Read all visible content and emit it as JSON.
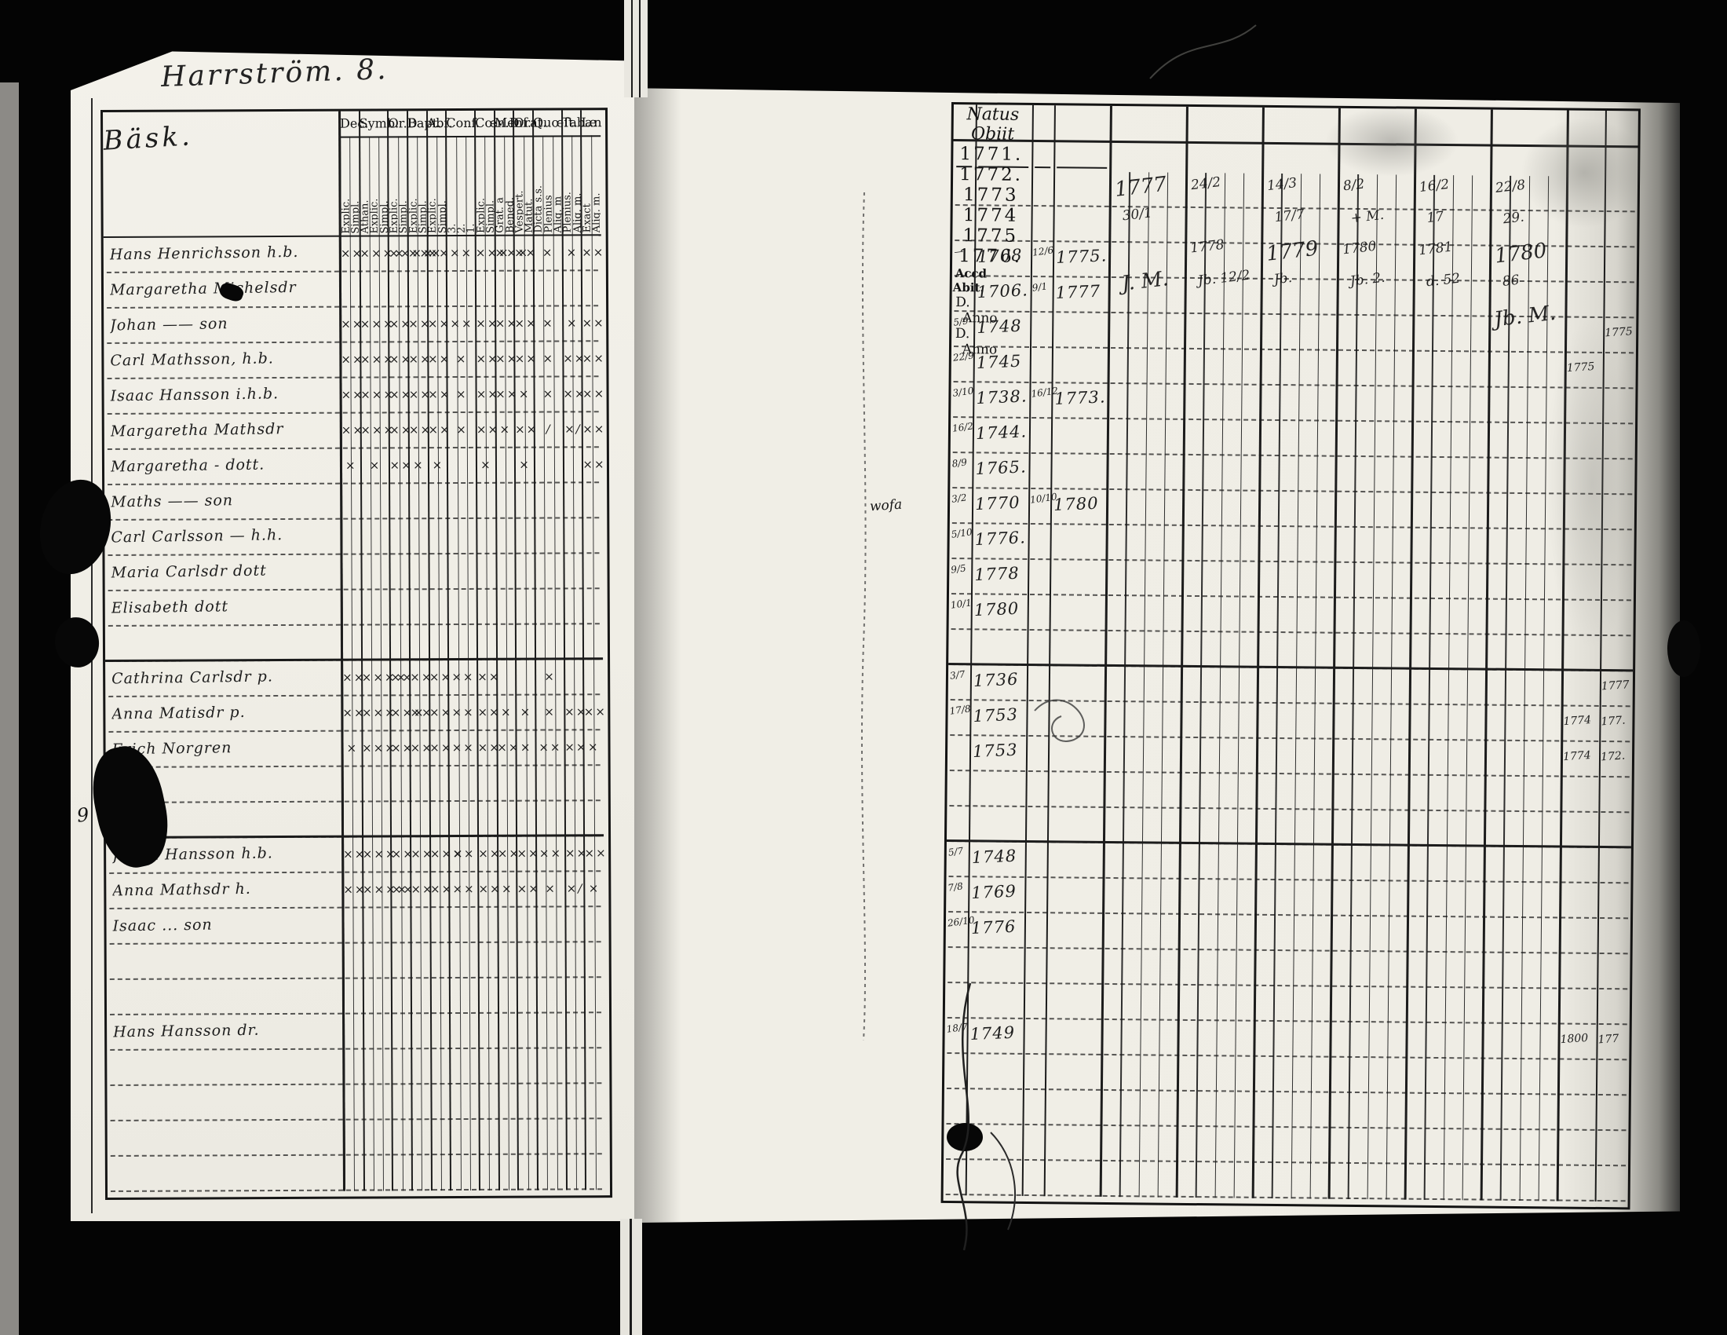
{
  "title": "Harrström. 8.",
  "colors": {
    "paper": "#f0eee6",
    "ink": "#1d1d1d",
    "background": "#040404"
  },
  "left_table": {
    "name_header": "Bäsk.",
    "columns": [
      {
        "label": "Dec.",
        "subs": [
          "Explic.",
          "Simpl."
        ]
      },
      {
        "label": "Symb.",
        "subs": [
          "Athan.",
          "Explic.",
          "Simpl."
        ]
      },
      {
        "label": "Or.D",
        "subs": [
          "Explic.",
          "Simpl."
        ]
      },
      {
        "label": "Bapt.",
        "subs": [
          "Explic.",
          "Simpl."
        ]
      },
      {
        "label": "Abſ.",
        "subs": [
          "Explic.",
          "Simpl."
        ]
      },
      {
        "label": "Conf.",
        "subs": [
          "3.",
          "2.",
          "1."
        ]
      },
      {
        "label": "Cœn.D",
        "subs": [
          "Explic.",
          "Simpl."
        ]
      },
      {
        "label": "Menſ.",
        "subs": [
          "Grat. a",
          "Bened."
        ]
      },
      {
        "label": "Orat.",
        "subs": [
          "Vespert.",
          "Matut."
        ]
      },
      {
        "label": "Quœſt.",
        "subs": [
          "Dicta s.s.",
          "Plenius",
          "Aliq. m"
        ]
      },
      {
        "label": "Tabæ",
        "subs": [
          "Plenius.",
          "Aliq. m."
        ]
      },
      {
        "label": "L.n",
        "subs": [
          "Exact",
          "Aliq. m."
        ]
      }
    ],
    "rows": [
      {
        "name": "Hans Henrichsson h.b.",
        "marks": [
          "××",
          "××××",
          "××××",
          "×××",
          "××",
          "××",
          "×××",
          "×××",
          "××",
          "×",
          "×",
          "××"
        ]
      },
      {
        "name": "Margaretha Michelsdr",
        "marks": [
          "",
          "",
          "",
          "",
          "",
          "",
          "",
          "",
          "",
          "",
          "",
          ""
        ]
      },
      {
        "name": "Johan  ——  son",
        "marks": [
          "××",
          "×××",
          "××",
          "××",
          "××",
          "××",
          "××",
          "××",
          "××",
          "×",
          "×",
          "××"
        ]
      },
      {
        "name": "Carl Mathsson, h.b.",
        "marks": [
          "××",
          "×××",
          "××",
          "××",
          "××",
          "×",
          "××",
          "××",
          "××",
          "×",
          "××",
          "××"
        ]
      },
      {
        "name": "Isaac Hansson i.h.b.",
        "marks": [
          "××",
          "×××",
          "××",
          "××",
          "××",
          "×",
          "××",
          "××",
          "×",
          "×",
          "××",
          "××"
        ]
      },
      {
        "name": "Margaretha Mathsdr",
        "marks": [
          "××",
          "×××",
          "××",
          "××",
          "××",
          "×",
          "××",
          "×",
          "××",
          "/",
          "×/",
          "××"
        ]
      },
      {
        "name": "Margaretha - dott.",
        "marks": [
          "×",
          "×",
          "××",
          "×",
          "×",
          "",
          "×",
          "",
          "×",
          "",
          "",
          "××"
        ]
      },
      {
        "name": "Maths  ——  son",
        "marks": [
          "",
          "",
          "",
          "",
          "",
          "",
          "",
          "",
          "",
          "",
          "",
          ""
        ]
      },
      {
        "name": "Carl Carlsson — h.h.",
        "marks": [
          "",
          "",
          "",
          "",
          "",
          "",
          "",
          "",
          "",
          "",
          "",
          ""
        ]
      },
      {
        "name": "Maria Carlsdr  dott",
        "marks": [
          "",
          "",
          "",
          "",
          "",
          "",
          "",
          "",
          "",
          "",
          "",
          ""
        ]
      },
      {
        "name": "Elisabeth  dott",
        "marks": [
          "",
          "",
          "",
          "",
          "",
          "",
          "",
          "",
          "",
          "",
          "",
          ""
        ]
      },
      {
        "name": "",
        "marks": [
          "",
          "",
          "",
          "",
          "",
          "",
          "",
          "",
          "",
          "",
          "",
          ""
        ]
      },
      {
        "name": "Cathrina Carlsdr p.",
        "marks": [
          "××",
          "××××",
          "××",
          "××",
          "××",
          "××",
          "××",
          "",
          "",
          "×",
          "",
          ""
        ]
      },
      {
        "name": "Anna Matisdr p.",
        "marks": [
          "××",
          "×××",
          "×××",
          "××",
          "××",
          "××",
          "××",
          "×",
          "×",
          "×",
          "××",
          "××"
        ]
      },
      {
        "name": "Erich Norgren",
        "marks": [
          "×",
          "×××",
          "××",
          "××",
          "××",
          "××",
          "××",
          "××",
          "×",
          "××",
          "××",
          "×"
        ]
      },
      {
        "name": "",
        "marks": [
          "",
          "",
          "",
          "",
          "",
          "",
          "",
          "",
          "",
          "",
          "",
          ""
        ]
      },
      {
        "name": "",
        "marks": [
          "",
          "",
          "",
          "",
          "",
          "",
          "",
          "",
          "",
          "",
          "",
          ""
        ]
      },
      {
        "name": "Johan Hansson h.b.",
        "marks": [
          "××",
          "×××",
          "××",
          "××",
          "×××",
          "××",
          "××",
          "××",
          "××",
          "××",
          "××",
          "××"
        ]
      },
      {
        "name": "Anna Mathsdr h.",
        "marks": [
          "××",
          "××××",
          "××",
          "××",
          "××",
          "××",
          "××",
          "×",
          "××",
          "×",
          "×/",
          "×"
        ]
      },
      {
        "name": "Isaac  ...  son",
        "marks": [
          "",
          "",
          "",
          "",
          "",
          "",
          "",
          "",
          "",
          "",
          "",
          ""
        ]
      },
      {
        "name": "",
        "marks": [
          "",
          "",
          "",
          "",
          "",
          "",
          "",
          "",
          "",
          "",
          "",
          ""
        ]
      },
      {
        "name": "",
        "marks": [
          "",
          "",
          "",
          "",
          "",
          "",
          "",
          "",
          "",
          "",
          "",
          ""
        ]
      },
      {
        "name": "Hans Hansson  dr.",
        "marks": [
          "",
          "",
          "",
          "",
          "",
          "",
          "",
          "",
          "",
          "",
          "",
          ""
        ]
      },
      {
        "name": "",
        "marks": [
          "",
          "",
          "",
          "",
          "",
          "",
          "",
          "",
          "",
          "",
          "",
          ""
        ]
      },
      {
        "name": "",
        "marks": [
          "",
          "",
          "",
          "",
          "",
          "",
          "",
          "",
          "",
          "",
          "",
          ""
        ]
      },
      {
        "name": "",
        "marks": [
          "",
          "",
          "",
          "",
          "",
          "",
          "",
          "",
          "",
          "",
          "",
          ""
        ]
      },
      {
        "name": "",
        "marks": [
          "",
          "",
          "",
          "",
          "",
          "",
          "",
          "",
          "",
          "",
          "",
          ""
        ]
      }
    ]
  },
  "right_table": {
    "natus_label": "Natus",
    "obiit_label": "Obiit",
    "sub": [
      "D.",
      "Anno",
      "D.",
      "Anno"
    ],
    "years": [
      "1771.",
      "1772.",
      "1773",
      "1774",
      "1775",
      "1776."
    ],
    "acc_label": "Accd",
    "abit_label": "Abit.",
    "rows": [
      {
        "natus_d": "—",
        "natus": "1708",
        "obiit_d": "12/6",
        "obiit": "1775.",
        "acc": "",
        "abit": ""
      },
      {
        "natus_d": "",
        "natus": "1706.",
        "obiit_d": "9/1",
        "obiit": "1777",
        "acc": "",
        "abit": ""
      },
      {
        "natus_d": "5/9",
        "natus": "1748",
        "obiit_d": "",
        "obiit": "",
        "acc": "",
        "abit": "1775"
      },
      {
        "natus_d": "22/9",
        "natus": "1745",
        "obiit_d": "",
        "obiit": "",
        "acc": "1775",
        "abit": ""
      },
      {
        "natus_d": "3/10",
        "natus": "1738.",
        "obiit_d": "16/12",
        "obiit": "1773.",
        "acc": "",
        "abit": ""
      },
      {
        "natus_d": "16/2",
        "natus": "1744.",
        "obiit_d": "",
        "obiit": "",
        "acc": "",
        "abit": ""
      },
      {
        "natus_d": "8/9",
        "natus": "1765.",
        "obiit_d": "",
        "obiit": "",
        "acc": "",
        "abit": ""
      },
      {
        "natus_d": "3/2",
        "natus": "1770",
        "obiit_d": "10/10",
        "obiit": "1780",
        "acc": "",
        "abit": ""
      },
      {
        "natus_d": "5/10",
        "natus": "1776.",
        "obiit_d": "",
        "obiit": "",
        "acc": "",
        "abit": ""
      },
      {
        "natus_d": "9/5",
        "natus": "1778",
        "obiit_d": "",
        "obiit": "",
        "acc": "",
        "abit": ""
      },
      {
        "natus_d": "10/1",
        "natus": "1780",
        "obiit_d": "",
        "obiit": "",
        "acc": "",
        "abit": ""
      },
      {
        "natus_d": "",
        "natus": "",
        "obiit_d": "",
        "obiit": "",
        "acc": "",
        "abit": ""
      },
      {
        "natus_d": "3/7",
        "natus": "1736",
        "obiit_d": "",
        "obiit": "",
        "acc": "",
        "abit": "1777"
      },
      {
        "natus_d": "17/8",
        "natus": "1753",
        "obiit_d": "",
        "obiit": "",
        "acc": "1774",
        "abit": "177."
      },
      {
        "natus_d": "",
        "natus": "1753",
        "obiit_d": "",
        "obiit": "",
        "acc": "1774",
        "abit": "172."
      },
      {
        "natus_d": "",
        "natus": "",
        "obiit_d": "",
        "obiit": "",
        "acc": "",
        "abit": ""
      },
      {
        "natus_d": "",
        "natus": "",
        "obiit_d": "",
        "obiit": "",
        "acc": "",
        "abit": ""
      },
      {
        "natus_d": "5/7",
        "natus": "1748",
        "obiit_d": "",
        "obiit": "",
        "acc": "",
        "abit": ""
      },
      {
        "natus_d": "7/8",
        "natus": "1769",
        "obiit_d": "",
        "obiit": "",
        "acc": "",
        "abit": ""
      },
      {
        "natus_d": "26/10",
        "natus": "1776",
        "obiit_d": "",
        "obiit": "",
        "acc": "",
        "abit": ""
      },
      {
        "natus_d": "",
        "natus": "",
        "obiit_d": "",
        "obiit": "",
        "acc": "",
        "abit": ""
      },
      {
        "natus_d": "",
        "natus": "",
        "obiit_d": "",
        "obiit": "",
        "acc": "",
        "abit": ""
      },
      {
        "natus_d": "18/7",
        "natus": "1749",
        "obiit_d": "",
        "obiit": "",
        "acc": "1800",
        "abit": "177"
      },
      {
        "natus_d": "",
        "natus": "",
        "obiit_d": "",
        "obiit": "",
        "acc": "",
        "abit": ""
      },
      {
        "natus_d": "",
        "natus": "",
        "obiit_d": "",
        "obiit": "",
        "acc": "",
        "abit": ""
      },
      {
        "natus_d": "",
        "natus": "",
        "obiit_d": "",
        "obiit": "",
        "acc": "",
        "abit": ""
      },
      {
        "natus_d": "",
        "natus": "",
        "obiit_d": "",
        "obiit": "",
        "acc": "",
        "abit": ""
      }
    ],
    "scrawls": [
      {
        "col": 0,
        "line": 0,
        "text": "1777",
        "big": true
      },
      {
        "col": 0,
        "line": 1,
        "text": "30/1"
      },
      {
        "col": 0,
        "line": 3,
        "text": "J. M.",
        "big": true
      },
      {
        "col": 1,
        "line": 0,
        "text": "24/2"
      },
      {
        "col": 1,
        "line": 2,
        "text": "1778"
      },
      {
        "col": 1,
        "line": 3,
        "text": "Jb. 12/2"
      },
      {
        "col": 2,
        "line": 0,
        "text": "14/3"
      },
      {
        "col": 2,
        "line": 1,
        "text": "17/7"
      },
      {
        "col": 2,
        "line": 2,
        "text": "1779",
        "big": true
      },
      {
        "col": 2,
        "line": 3,
        "text": "Jb."
      },
      {
        "col": 3,
        "line": 0,
        "text": "8/2"
      },
      {
        "col": 3,
        "line": 1,
        "text": "+ M."
      },
      {
        "col": 3,
        "line": 2,
        "text": "1780"
      },
      {
        "col": 3,
        "line": 3,
        "text": "Jb. 2."
      },
      {
        "col": 4,
        "line": 0,
        "text": "16/2"
      },
      {
        "col": 4,
        "line": 1,
        "text": "17"
      },
      {
        "col": 4,
        "line": 2,
        "text": "1781"
      },
      {
        "col": 4,
        "line": 3,
        "text": "d. 52"
      },
      {
        "col": 5,
        "line": 0,
        "text": "22/8"
      },
      {
        "col": 5,
        "line": 1,
        "text": "29."
      },
      {
        "col": 5,
        "line": 2,
        "text": "1780",
        "big": true
      },
      {
        "col": 5,
        "line": 3,
        "text": "86"
      },
      {
        "col": 5,
        "line": 4,
        "text": "Jb. M.",
        "big": true
      }
    ]
  },
  "annotations": {
    "gutter_note": "wofa",
    "margin_number": "9"
  }
}
